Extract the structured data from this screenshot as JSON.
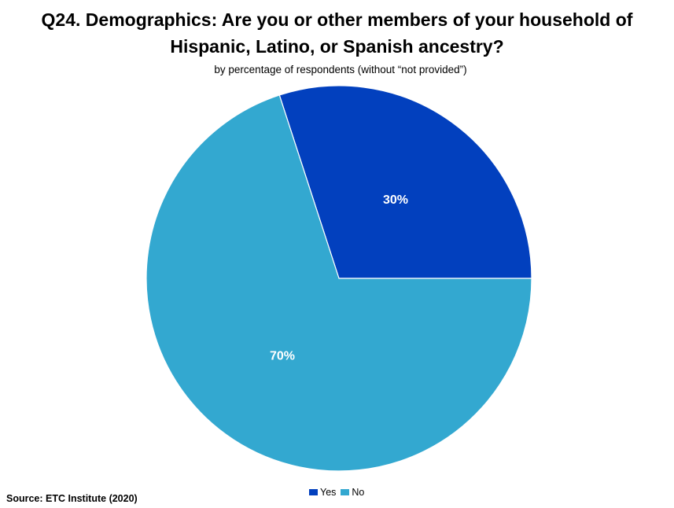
{
  "title_lines": [
    "Q24. Demographics: Are you or other members of your household of",
    "Hispanic, Latino, or Spanish ancestry?"
  ],
  "subtitle": "by percentage of respondents (without “not provided”)",
  "source": "Source:  ETC Institute (2020)",
  "chart_data": {
    "type": "pie",
    "categories": [
      "Yes",
      "No"
    ],
    "values": [
      30,
      70
    ],
    "labels": [
      "30%",
      "70%"
    ],
    "colors": [
      "#0240BE",
      "#33A8D0"
    ],
    "legend_position": "bottom"
  }
}
